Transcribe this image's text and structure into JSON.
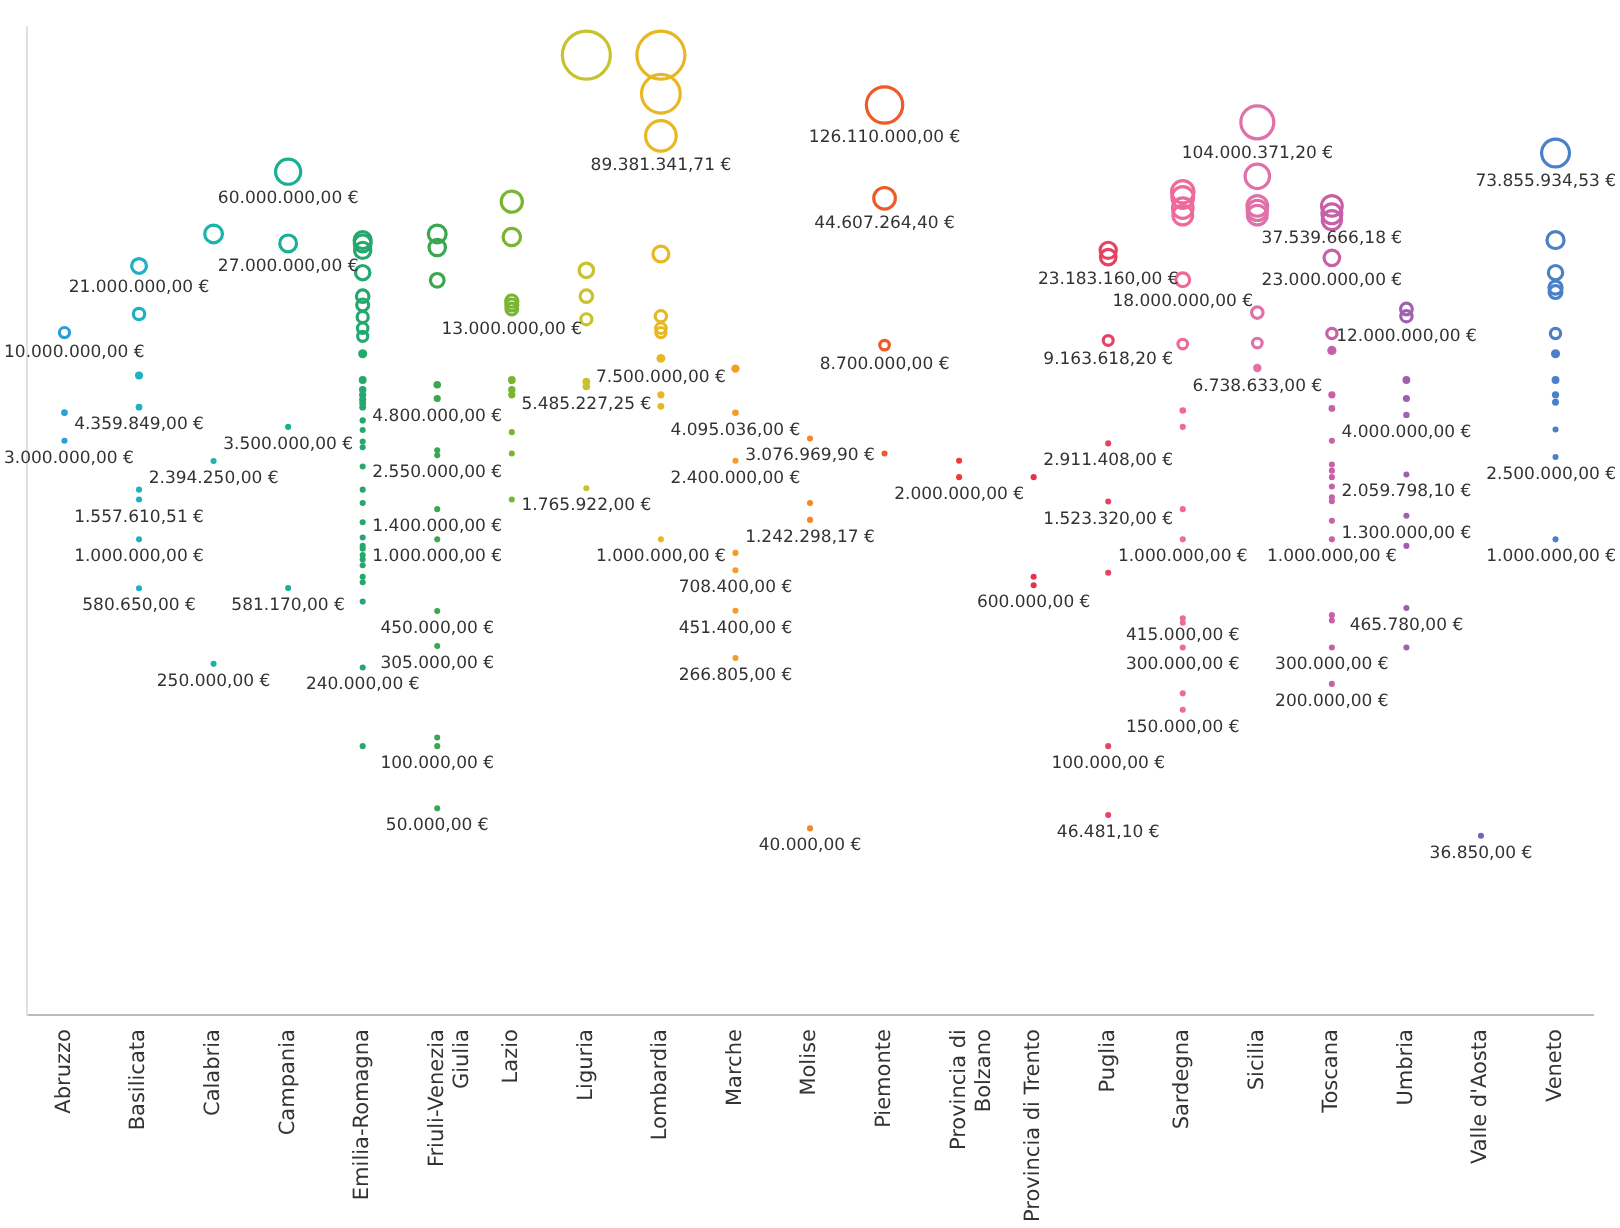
{
  "chart_data": {
    "type": "bubble",
    "log": "y",
    "ylim": [
      5000,
      300000000
    ],
    "tick_labels": "x",
    "grid": false,
    "legend": false,
    "categories": [
      "Abruzzo",
      "Basilicata",
      "Calabria",
      "Campania",
      "Emilia-Romagna",
      "Friuli-Venezia Giulia",
      "Lazio",
      "Liguria",
      "Lombardia",
      "Marche",
      "Molise",
      "Piemonte",
      "Provincia di Bolzano",
      "Provincia di Trento",
      "Puglia",
      "Sardegna",
      "Sicilia",
      "Toscana",
      "Umbria",
      "Valle d'Aosta",
      "Veneto"
    ],
    "series": [
      {
        "color": "#2a9fd6",
        "x": [
          "Abruzzo",
          "Abruzzo",
          "Abruzzo"
        ],
        "values": [
          10000000,
          4100000,
          3000000
        ],
        "sizes": [
          0.045,
          0.019,
          0.016
        ],
        "value_labels": [
          "10.000.000,00 €",
          null,
          "3.000.000,00 €"
        ]
      },
      {
        "color": "#1fb0c4",
        "x": [
          "Basilicata",
          "Basilicata",
          "Basilicata",
          "Basilicata",
          "Basilicata",
          "Basilicata",
          "Basilicata",
          "Basilicata"
        ],
        "values": [
          21000000,
          12300000,
          6200000,
          4359849,
          1740000,
          1557610.51,
          1000000,
          580650
        ],
        "sizes": [
          0.095,
          0.056,
          0.028,
          0.02,
          0.016,
          0.016,
          0.016,
          0.016
        ],
        "value_labels": [
          "21.000.000,00 €",
          null,
          null,
          "4.359.849,00 €",
          null,
          "1.557.610,51 €",
          "1.000.000,00 €",
          "580.650,00 €"
        ]
      },
      {
        "color": "#1db3aa",
        "x": [
          "Calabria",
          "Calabria",
          "Calabria"
        ],
        "values": [
          30000000,
          2394250,
          250000
        ],
        "sizes": [
          0.136,
          0.016,
          0.016
        ],
        "value_labels": [
          null,
          "2.394.250,00 €",
          "250.000,00 €"
        ]
      },
      {
        "color": "#1aaf92",
        "x": [
          "Campania",
          "Campania",
          "Campania",
          "Campania"
        ],
        "values": [
          60000000,
          27000000,
          3500000,
          581170
        ],
        "sizes": [
          0.273,
          0.123,
          0.016,
          0.016
        ],
        "value_labels": [
          "60.000.000,00 €",
          "27.000.000,00 €",
          "3.500.000,00 €",
          "581.170,00 €"
        ]
      },
      {
        "color": "#25a86e",
        "x": [
          "Emilia-Romagna",
          "Emilia-Romagna",
          "Emilia-Romagna",
          "Emilia-Romagna",
          "Emilia-Romagna",
          "Emilia-Romagna",
          "Emilia-Romagna",
          "Emilia-Romagna",
          "Emilia-Romagna",
          "Emilia-Romagna",
          "Emilia-Romagna",
          "Emilia-Romagna",
          "Emilia-Romagna",
          "Emilia-Romagna",
          "Emilia-Romagna",
          "Emilia-Romagna",
          "Emilia-Romagna",
          "Emilia-Romagna",
          "Emilia-Romagna",
          "Emilia-Romagna",
          "Emilia-Romagna",
          "Emilia-Romagna",
          "Emilia-Romagna",
          "Emilia-Romagna",
          "Emilia-Romagna",
          "Emilia-Romagna",
          "Emilia-Romagna",
          "Emilia-Romagna",
          "Emilia-Romagna",
          "Emilia-Romagna",
          "Emilia-Romagna",
          "Emilia-Romagna",
          "Emilia-Romagna",
          "Emilia-Romagna",
          "Emilia-Romagna"
        ],
        "values": [
          28000000,
          27000000,
          25000000,
          19500000,
          15000000,
          13600000,
          11900000,
          10500000,
          9600000,
          7900000,
          5900000,
          5300000,
          5000000,
          4750000,
          4560000,
          4360000,
          3760000,
          3380000,
          2970000,
          2790000,
          2250000,
          1740000,
          1500000,
          1210000,
          1020000,
          930000,
          900000,
          840000,
          800000,
          750000,
          660000,
          620000,
          500000,
          240000,
          100000
        ],
        "sizes": [
          0.127,
          0.123,
          0.114,
          0.089,
          0.068,
          0.062,
          0.054,
          0.048,
          0.044,
          0.036,
          0.027,
          0.024,
          0.023,
          0.022,
          0.021,
          0.02,
          0.017,
          0.016,
          0.016,
          0.016,
          0.016,
          0.016,
          0.016,
          0.016,
          0.016,
          0.016,
          0.016,
          0.016,
          0.016,
          0.016,
          0.016,
          0.016,
          0.016,
          0.016,
          0.016
        ],
        "value_labels": [
          null,
          null,
          null,
          null,
          null,
          null,
          null,
          null,
          null,
          null,
          null,
          null,
          null,
          null,
          null,
          null,
          null,
          null,
          null,
          null,
          null,
          null,
          null,
          null,
          null,
          null,
          null,
          null,
          null,
          null,
          null,
          null,
          null,
          "240.000,00 €",
          null
        ]
      },
      {
        "color": "#3aa650",
        "x": [
          "Friuli-Venezia Giulia",
          "Friuli-Venezia Giulia",
          "Friuli-Venezia Giulia",
          "Friuli-Venezia Giulia",
          "Friuli-Venezia Giulia",
          "Friuli-Venezia Giulia",
          "Friuli-Venezia Giulia",
          "Friuli-Venezia Giulia",
          "Friuli-Venezia Giulia",
          "Friuli-Venezia Giulia",
          "Friuli-Venezia Giulia",
          "Friuli-Venezia Giulia",
          "Friuli-Venezia Giulia",
          "Friuli-Venezia Giulia"
        ],
        "values": [
          30000000,
          25800000,
          17900000,
          5600000,
          4800000,
          2700000,
          2550000,
          1400000,
          1000000,
          450000,
          305000,
          110000,
          100000,
          50000
        ],
        "sizes": [
          0.136,
          0.117,
          0.081,
          0.025,
          0.022,
          0.016,
          0.016,
          0.016,
          0.016,
          0.016,
          0.016,
          0.016,
          0.016,
          0.016
        ],
        "value_labels": [
          null,
          null,
          null,
          null,
          "4.800.000,00 €",
          null,
          "2.550.000,00 €",
          "1.400.000,00 €",
          "1.000.000,00 €",
          "450.000,00 €",
          "305.000,00 €",
          null,
          "100.000,00 €",
          "50.000,00 €"
        ]
      },
      {
        "color": "#7ab532",
        "x": [
          "Lazio",
          "Lazio",
          "Lazio",
          "Lazio",
          "Lazio",
          "Lazio",
          "Lazio",
          "Lazio",
          "Lazio",
          "Lazio",
          "Lazio"
        ],
        "values": [
          43000000,
          29000000,
          14200000,
          13600000,
          13000000,
          5900000,
          5300000,
          5000000,
          3300000,
          2600000,
          1560000
        ],
        "sizes": [
          0.195,
          0.132,
          0.065,
          0.062,
          0.059,
          0.027,
          0.024,
          0.023,
          0.016,
          0.016,
          0.016
        ],
        "value_labels": [
          null,
          null,
          null,
          null,
          "13.000.000,00 €",
          null,
          null,
          null,
          null,
          null,
          null
        ]
      },
      {
        "color": "#c8c22c",
        "x": [
          "Liguria",
          "Liguria",
          "Liguria",
          "Liguria",
          "Liguria",
          "Liguria",
          "Liguria"
        ],
        "values": [
          220000000,
          20000000,
          15000000,
          11600000,
          5800000,
          5485227.25,
          1765922
        ],
        "sizes": [
          1,
          0.091,
          0.068,
          0.053,
          0.026,
          0.025,
          0.016
        ],
        "value_labels": [
          null,
          null,
          null,
          null,
          null,
          "5.485.227,25 €",
          "1.765.922,00 €"
        ]
      },
      {
        "color": "#e8b822",
        "x": [
          "Lombardia",
          "Lombardia",
          "Lombardia",
          "Lombardia",
          "Lombardia",
          "Lombardia",
          "Lombardia",
          "Lombardia",
          "Lombardia",
          "Lombardia",
          "Lombardia"
        ],
        "values": [
          220000000,
          143000000,
          89381341.71,
          24000000,
          12000000,
          10500000,
          10000000,
          7500000,
          5000000,
          4400000,
          1000000
        ],
        "sizes": [
          1,
          0.65,
          0.406,
          0.109,
          0.055,
          0.048,
          0.045,
          0.034,
          0.023,
          0.02,
          0.016
        ],
        "value_labels": [
          null,
          null,
          "89.381.341,71 €",
          null,
          null,
          null,
          null,
          "7.500.000,00 €",
          null,
          null,
          "1.000.000,00 €"
        ]
      },
      {
        "color": "#f29d25",
        "x": [
          "Marche",
          "Marche",
          "Marche",
          "Marche",
          "Marche",
          "Marche",
          "Marche"
        ],
        "values": [
          6700000,
          4095036,
          2400000,
          860000,
          708400,
          451400,
          266805
        ],
        "sizes": [
          0.03,
          0.019,
          0.016,
          0.016,
          0.016,
          0.016,
          0.016
        ],
        "value_labels": [
          null,
          "4.095.036,00 €",
          "2.400.000,00 €",
          null,
          "708.400,00 €",
          "451.400,00 €",
          "266.805,00 €"
        ]
      },
      {
        "color": "#f5862a",
        "x": [
          "Molise",
          "Molise",
          "Molise",
          "Molise"
        ],
        "values": [
          3076969.9,
          1500000,
          1242298.17,
          40000
        ],
        "sizes": [
          0.016,
          0.016,
          0.016,
          0.016
        ],
        "value_labels": [
          "3.076.969,90 €",
          null,
          "1.242.298,17 €",
          "40.000,00 €"
        ]
      },
      {
        "color": "#f05a28",
        "x": [
          "Piemonte",
          "Piemonte",
          "Piemonte",
          "Piemonte"
        ],
        "values": [
          126110000,
          44607264.4,
          8700000,
          2600000
        ],
        "sizes": [
          0.573,
          0.203,
          0.04,
          0.016
        ],
        "value_labels": [
          "126.110.000,00 €",
          "44.607.264,40 €",
          "8.700.000,00 €",
          null
        ]
      },
      {
        "color": "#ec3a3a",
        "x": [
          "Provincia di Bolzano",
          "Provincia di Bolzano"
        ],
        "values": [
          2400000,
          2000000
        ],
        "sizes": [
          0.016,
          0.016
        ],
        "value_labels": [
          null,
          "2.000.000,00 €"
        ]
      },
      {
        "color": "#e8304a",
        "x": [
          "Provincia di Trento",
          "Provincia di Trento",
          "Provincia di Trento"
        ],
        "values": [
          2000000,
          660000,
          600000
        ],
        "sizes": [
          0.016,
          0.016,
          0.016
        ],
        "value_labels": [
          null,
          null,
          "600.000,00 €"
        ]
      },
      {
        "color": "#e84262",
        "x": [
          "Puglia",
          "Puglia",
          "Puglia",
          "Puglia",
          "Puglia",
          "Puglia",
          "Puglia",
          "Puglia"
        ],
        "values": [
          25000000,
          23183160,
          9163618.2,
          2911408,
          1523320,
          690000,
          100000,
          46481.1
        ],
        "sizes": [
          0.114,
          0.105,
          0.042,
          0.016,
          0.016,
          0.016,
          0.016,
          0.016
        ],
        "value_labels": [
          null,
          "23.183.160,00 €",
          "9.163.618,20 €",
          "2.911.408,00 €",
          "1.523.320,00 €",
          null,
          "100.000,00 €",
          "46.481,10 €"
        ]
      },
      {
        "color": "#ee6a9a",
        "x": [
          "Sardegna",
          "Sardegna",
          "Sardegna",
          "Sardegna",
          "Sardegna",
          "Sardegna",
          "Sardegna",
          "Sardegna",
          "Sardegna",
          "Sardegna",
          "Sardegna",
          "Sardegna",
          "Sardegna",
          "Sardegna",
          "Sardegna"
        ],
        "values": [
          48000000,
          45000000,
          40000000,
          37000000,
          18000000,
          8800000,
          4200000,
          3500000,
          1400000,
          1000000,
          415000,
          395000,
          300000,
          180000,
          150000
        ],
        "sizes": [
          0.218,
          0.205,
          0.182,
          0.168,
          0.082,
          0.04,
          0.019,
          0.016,
          0.016,
          0.016,
          0.016,
          0.016,
          0.016,
          0.016,
          0.016
        ],
        "value_labels": [
          null,
          null,
          null,
          null,
          "18.000.000,00 €",
          null,
          null,
          null,
          null,
          "1.000.000,00 €",
          "415.000,00 €",
          null,
          "300.000,00 €",
          null,
          "150.000,00 €"
        ]
      },
      {
        "color": "#e070a8",
        "x": [
          "Sicilia",
          "Sicilia",
          "Sicilia",
          "Sicilia",
          "Sicilia",
          "Sicilia",
          "Sicilia",
          "Sicilia"
        ],
        "values": [
          104000371.2,
          57000000,
          41000000,
          39000000,
          37000000,
          12500000,
          8900000,
          6738633
        ],
        "sizes": [
          0.473,
          0.259,
          0.186,
          0.177,
          0.168,
          0.057,
          0.04,
          0.031
        ],
        "value_labels": [
          "104.000.371,20 €",
          null,
          null,
          null,
          null,
          null,
          null,
          "6.738.633,00 €"
        ]
      },
      {
        "color": "#c860a8",
        "x": [
          "Toscana",
          "Toscana",
          "Toscana",
          "Toscana",
          "Toscana",
          "Toscana",
          "Toscana",
          "Toscana",
          "Toscana",
          "Toscana",
          "Toscana",
          "Toscana",
          "Toscana",
          "Toscana",
          "Toscana",
          "Toscana",
          "Toscana",
          "Toscana",
          "Toscana",
          "Toscana",
          "Toscana"
        ],
        "values": [
          41000000,
          37539666.18,
          35000000,
          23000000,
          9900000,
          8200000,
          5000000,
          4300000,
          3000000,
          2300000,
          2150000,
          2000000,
          1800000,
          1600000,
          1530000,
          1230000,
          1000000,
          430000,
          405000,
          300000,
          200000
        ],
        "sizes": [
          0.186,
          0.171,
          0.159,
          0.105,
          0.045,
          0.037,
          0.023,
          0.02,
          0.016,
          0.016,
          0.016,
          0.016,
          0.016,
          0.016,
          0.016,
          0.016,
          0.016,
          0.016,
          0.016,
          0.016,
          0.016
        ],
        "value_labels": [
          null,
          "37.539.666,18 €",
          null,
          "23.000.000,00 €",
          null,
          null,
          null,
          null,
          null,
          null,
          null,
          null,
          null,
          null,
          null,
          null,
          "1.000.000,00 €",
          null,
          null,
          "300.000,00 €",
          "200.000,00 €"
        ]
      },
      {
        "color": "#a060b0",
        "x": [
          "Umbria",
          "Umbria",
          "Umbria",
          "Umbria",
          "Umbria",
          "Umbria",
          "Umbria",
          "Umbria",
          "Umbria",
          "Umbria"
        ],
        "values": [
          13000000,
          12000000,
          5900000,
          4800000,
          4000000,
          2059798.1,
          1300000,
          930000,
          465780,
          300000
        ],
        "sizes": [
          0.059,
          0.055,
          0.027,
          0.022,
          0.018,
          0.016,
          0.016,
          0.016,
          0.016,
          0.016
        ],
        "value_labels": [
          null,
          "12.000.000,00 €",
          null,
          null,
          "4.000.000,00 €",
          "2.059.798,10 €",
          "1.300.000,00 €",
          null,
          "465.780,00 €",
          null
        ]
      },
      {
        "color": "#7860b8",
        "x": [
          "Valle d'Aosta"
        ],
        "values": [
          36850
        ],
        "sizes": [
          0.016
        ],
        "value_labels": [
          "36.850,00 €"
        ]
      },
      {
        "color": "#4a80c8",
        "x": [
          "Veneto",
          "Veneto",
          "Veneto",
          "Veneto",
          "Veneto",
          "Veneto",
          "Veneto",
          "Veneto",
          "Veneto",
          "Veneto",
          "Veneto",
          "Veneto",
          "Veneto"
        ],
        "values": [
          73855934.53,
          28000000,
          19500000,
          16500000,
          15700000,
          9900000,
          7900000,
          5900000,
          5000000,
          4600000,
          3400000,
          2500000,
          1000000
        ],
        "sizes": [
          0.336,
          0.127,
          0.089,
          0.075,
          0.071,
          0.045,
          0.036,
          0.027,
          0.023,
          0.021,
          0.016,
          0.016,
          0.016
        ],
        "value_labels": [
          "73.855.934,53 €",
          null,
          null,
          null,
          null,
          null,
          null,
          null,
          null,
          null,
          null,
          "2.500.000,00 €",
          "1.000.000,00 €"
        ]
      }
    ]
  }
}
